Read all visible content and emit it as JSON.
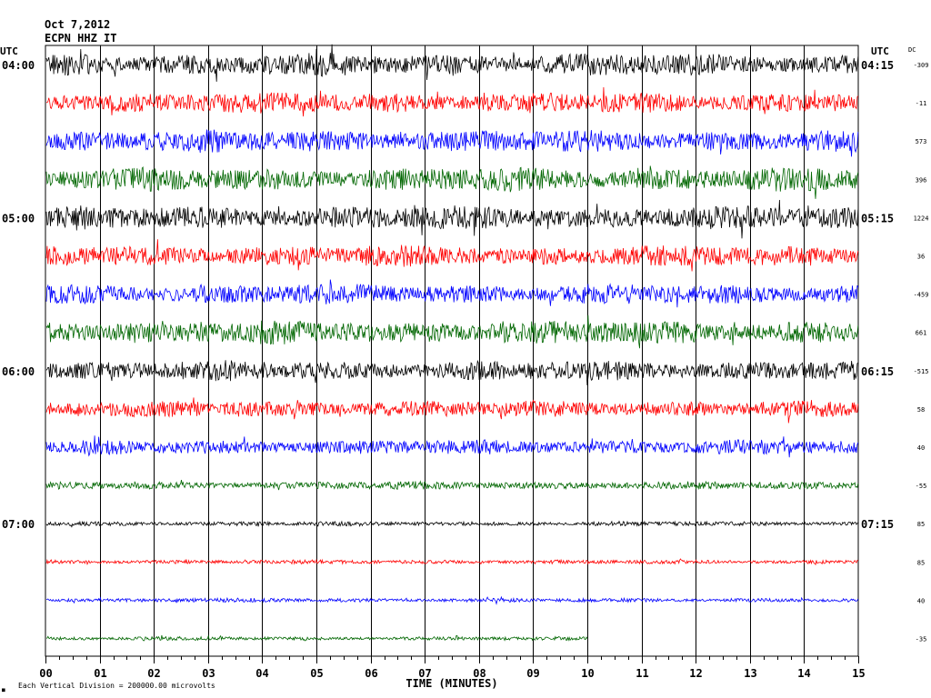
{
  "header": {
    "date": "Oct 7,2012",
    "station": "ECPN HHZ IT"
  },
  "axis": {
    "left_zone": "UTC",
    "right_zone": "UTC",
    "dc_label": "DC",
    "xlabel": "TIME (MINUTES)",
    "footer_mark": "■",
    "footer": "Each Vertical Division = 200000.00 microvolts"
  },
  "chart_data": {
    "type": "line",
    "title": "",
    "xlabel": "TIME (MINUTES)",
    "ylabel": "",
    "xlim": [
      0,
      15
    ],
    "x_ticks": [
      "00",
      "01",
      "02",
      "03",
      "04",
      "05",
      "06",
      "07",
      "08",
      "09",
      "10",
      "11",
      "12",
      "13",
      "14",
      "15"
    ],
    "grid": true,
    "line_colors": [
      "#000000",
      "#ff0000",
      "#0000ff",
      "#006600"
    ],
    "left_hour_labels": [
      {
        "row": 0,
        "text": "04:00"
      },
      {
        "row": 4,
        "text": "05:00"
      },
      {
        "row": 8,
        "text": "06:00"
      },
      {
        "row": 12,
        "text": "07:00"
      }
    ],
    "right_hour_labels": [
      {
        "row": 0,
        "text": "04:15"
      },
      {
        "row": 4,
        "text": "05:15"
      },
      {
        "row": 8,
        "text": "06:15"
      },
      {
        "row": 12,
        "text": "07:15"
      }
    ],
    "traces": [
      {
        "row": 0,
        "dc": "-309",
        "amplitude": 1.0,
        "end_minute": 15
      },
      {
        "row": 1,
        "dc": "-11",
        "amplitude": 0.95,
        "end_minute": 15
      },
      {
        "row": 2,
        "dc": "573",
        "amplitude": 1.0,
        "end_minute": 15
      },
      {
        "row": 3,
        "dc": "396",
        "amplitude": 1.05,
        "end_minute": 15
      },
      {
        "row": 4,
        "dc": "1224",
        "amplitude": 1.05,
        "end_minute": 15
      },
      {
        "row": 5,
        "dc": "36",
        "amplitude": 0.95,
        "end_minute": 15
      },
      {
        "row": 6,
        "dc": "-459",
        "amplitude": 0.9,
        "end_minute": 15
      },
      {
        "row": 7,
        "dc": "661",
        "amplitude": 1.05,
        "end_minute": 15
      },
      {
        "row": 8,
        "dc": "-515",
        "amplitude": 0.9,
        "end_minute": 15
      },
      {
        "row": 9,
        "dc": "58",
        "amplitude": 0.75,
        "end_minute": 15
      },
      {
        "row": 10,
        "dc": "40",
        "amplitude": 0.65,
        "end_minute": 15
      },
      {
        "row": 11,
        "dc": "-55",
        "amplitude": 0.35,
        "end_minute": 15
      },
      {
        "row": 12,
        "dc": "85",
        "amplitude": 0.2,
        "end_minute": 15
      },
      {
        "row": 13,
        "dc": "85",
        "amplitude": 0.18,
        "end_minute": 15
      },
      {
        "row": 14,
        "dc": "40",
        "amplitude": 0.18,
        "end_minute": 15
      },
      {
        "row": 15,
        "dc": "-35",
        "amplitude": 0.16,
        "end_minute": 10
      }
    ]
  }
}
